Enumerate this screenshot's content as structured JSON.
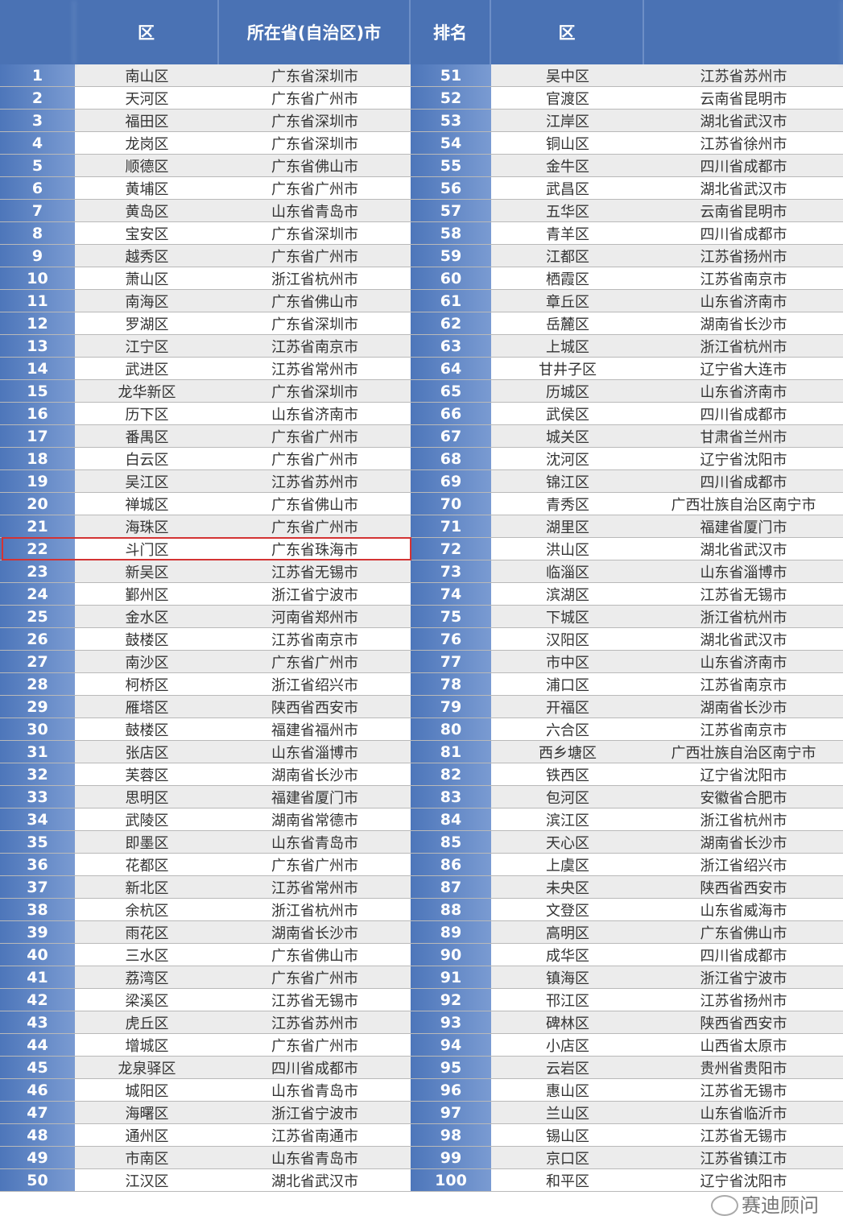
{
  "header": {
    "rank": "",
    "district": "区",
    "city": "所在省(自治区)市",
    "rank2": "排名",
    "district2": "区",
    "city2": ""
  },
  "highlight_rank": 22,
  "highlight_color": "#d33333",
  "watermark": "赛迪顾问",
  "rows": [
    [
      "1",
      "南山区",
      "广东省深圳市",
      "51",
      "吴中区",
      "江苏省苏州市"
    ],
    [
      "2",
      "天河区",
      "广东省广州市",
      "52",
      "官渡区",
      "云南省昆明市"
    ],
    [
      "3",
      "福田区",
      "广东省深圳市",
      "53",
      "江岸区",
      "湖北省武汉市"
    ],
    [
      "4",
      "龙岗区",
      "广东省深圳市",
      "54",
      "铜山区",
      "江苏省徐州市"
    ],
    [
      "5",
      "顺德区",
      "广东省佛山市",
      "55",
      "金牛区",
      "四川省成都市"
    ],
    [
      "6",
      "黄埔区",
      "广东省广州市",
      "56",
      "武昌区",
      "湖北省武汉市"
    ],
    [
      "7",
      "黄岛区",
      "山东省青岛市",
      "57",
      "五华区",
      "云南省昆明市"
    ],
    [
      "8",
      "宝安区",
      "广东省深圳市",
      "58",
      "青羊区",
      "四川省成都市"
    ],
    [
      "9",
      "越秀区",
      "广东省广州市",
      "59",
      "江都区",
      "江苏省扬州市"
    ],
    [
      "10",
      "萧山区",
      "浙江省杭州市",
      "60",
      "栖霞区",
      "江苏省南京市"
    ],
    [
      "11",
      "南海区",
      "广东省佛山市",
      "61",
      "章丘区",
      "山东省济南市"
    ],
    [
      "12",
      "罗湖区",
      "广东省深圳市",
      "62",
      "岳麓区",
      "湖南省长沙市"
    ],
    [
      "13",
      "江宁区",
      "江苏省南京市",
      "63",
      "上城区",
      "浙江省杭州市"
    ],
    [
      "14",
      "武进区",
      "江苏省常州市",
      "64",
      "甘井子区",
      "辽宁省大连市"
    ],
    [
      "15",
      "龙华新区",
      "广东省深圳市",
      "65",
      "历城区",
      "山东省济南市"
    ],
    [
      "16",
      "历下区",
      "山东省济南市",
      "66",
      "武侯区",
      "四川省成都市"
    ],
    [
      "17",
      "番禺区",
      "广东省广州市",
      "67",
      "城关区",
      "甘肃省兰州市"
    ],
    [
      "18",
      "白云区",
      "广东省广州市",
      "68",
      "沈河区",
      "辽宁省沈阳市"
    ],
    [
      "19",
      "吴江区",
      "江苏省苏州市",
      "69",
      "锦江区",
      "四川省成都市"
    ],
    [
      "20",
      "禅城区",
      "广东省佛山市",
      "70",
      "青秀区",
      "广西壮族自治区南宁市"
    ],
    [
      "21",
      "海珠区",
      "广东省广州市",
      "71",
      "湖里区",
      "福建省厦门市"
    ],
    [
      "22",
      "斗门区",
      "广东省珠海市",
      "72",
      "洪山区",
      "湖北省武汉市"
    ],
    [
      "23",
      "新吴区",
      "江苏省无锡市",
      "73",
      "临淄区",
      "山东省淄博市"
    ],
    [
      "24",
      "鄞州区",
      "浙江省宁波市",
      "74",
      "滨湖区",
      "江苏省无锡市"
    ],
    [
      "25",
      "金水区",
      "河南省郑州市",
      "75",
      "下城区",
      "浙江省杭州市"
    ],
    [
      "26",
      "鼓楼区",
      "江苏省南京市",
      "76",
      "汉阳区",
      "湖北省武汉市"
    ],
    [
      "27",
      "南沙区",
      "广东省广州市",
      "77",
      "市中区",
      "山东省济南市"
    ],
    [
      "28",
      "柯桥区",
      "浙江省绍兴市",
      "78",
      "浦口区",
      "江苏省南京市"
    ],
    [
      "29",
      "雁塔区",
      "陕西省西安市",
      "79",
      "开福区",
      "湖南省长沙市"
    ],
    [
      "30",
      "鼓楼区",
      "福建省福州市",
      "80",
      "六合区",
      "江苏省南京市"
    ],
    [
      "31",
      "张店区",
      "山东省淄博市",
      "81",
      "西乡塘区",
      "广西壮族自治区南宁市"
    ],
    [
      "32",
      "芙蓉区",
      "湖南省长沙市",
      "82",
      "铁西区",
      "辽宁省沈阳市"
    ],
    [
      "33",
      "思明区",
      "福建省厦门市",
      "83",
      "包河区",
      "安徽省合肥市"
    ],
    [
      "34",
      "武陵区",
      "湖南省常德市",
      "84",
      "滨江区",
      "浙江省杭州市"
    ],
    [
      "35",
      "即墨区",
      "山东省青岛市",
      "85",
      "天心区",
      "湖南省长沙市"
    ],
    [
      "36",
      "花都区",
      "广东省广州市",
      "86",
      "上虞区",
      "浙江省绍兴市"
    ],
    [
      "37",
      "新北区",
      "江苏省常州市",
      "87",
      "未央区",
      "陕西省西安市"
    ],
    [
      "38",
      "余杭区",
      "浙江省杭州市",
      "88",
      "文登区",
      "山东省威海市"
    ],
    [
      "39",
      "雨花区",
      "湖南省长沙市",
      "89",
      "高明区",
      "广东省佛山市"
    ],
    [
      "40",
      "三水区",
      "广东省佛山市",
      "90",
      "成华区",
      "四川省成都市"
    ],
    [
      "41",
      "荔湾区",
      "广东省广州市",
      "91",
      "镇海区",
      "浙江省宁波市"
    ],
    [
      "42",
      "梁溪区",
      "江苏省无锡市",
      "92",
      "邗江区",
      "江苏省扬州市"
    ],
    [
      "43",
      "虎丘区",
      "江苏省苏州市",
      "93",
      "碑林区",
      "陕西省西安市"
    ],
    [
      "44",
      "增城区",
      "广东省广州市",
      "94",
      "小店区",
      "山西省太原市"
    ],
    [
      "45",
      "龙泉驿区",
      "四川省成都市",
      "95",
      "云岩区",
      "贵州省贵阳市"
    ],
    [
      "46",
      "城阳区",
      "山东省青岛市",
      "96",
      "惠山区",
      "江苏省无锡市"
    ],
    [
      "47",
      "海曙区",
      "浙江省宁波市",
      "97",
      "兰山区",
      "山东省临沂市"
    ],
    [
      "48",
      "通州区",
      "江苏省南通市",
      "98",
      "锡山区",
      "江苏省无锡市"
    ],
    [
      "49",
      "市南区",
      "山东省青岛市",
      "99",
      "京口区",
      "江苏省镇江市"
    ],
    [
      "50",
      "江汉区",
      "湖北省武汉市",
      "100",
      "和平区",
      "辽宁省沈阳市"
    ]
  ]
}
